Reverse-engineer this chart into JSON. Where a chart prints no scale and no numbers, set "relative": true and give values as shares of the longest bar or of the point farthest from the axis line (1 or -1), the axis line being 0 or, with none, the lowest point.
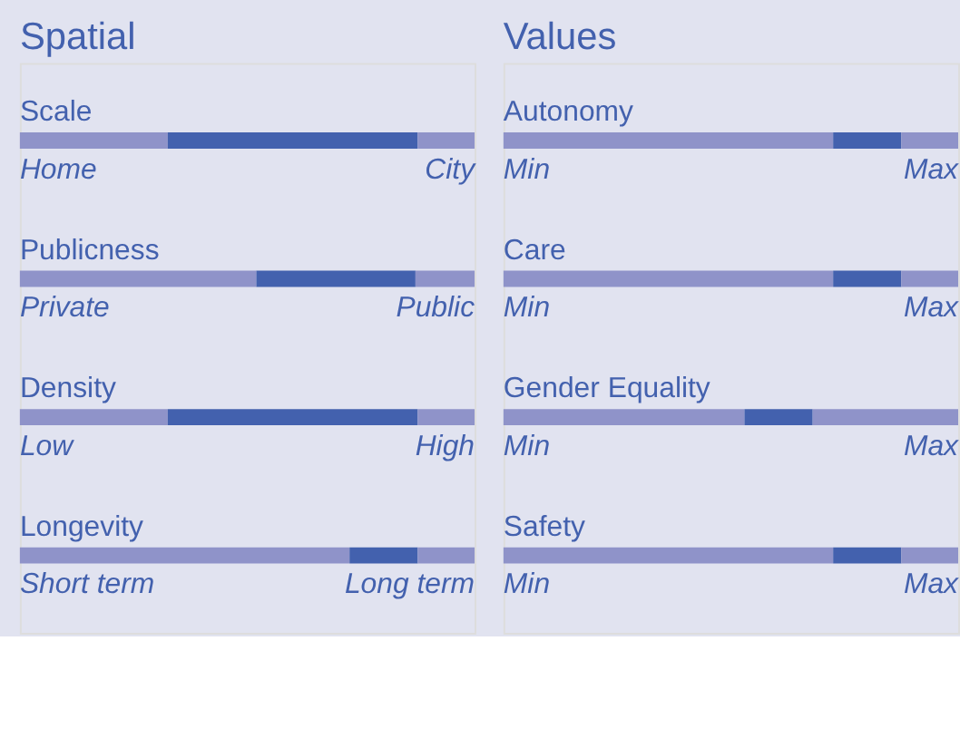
{
  "chart_data": [
    {
      "type": "bar",
      "title": "Spatial",
      "orientation": "horizontal",
      "stacked": true,
      "relative": true,
      "legend": false,
      "tick_labels": "y",
      "categories": [
        "Scale",
        "Publicness",
        "Density",
        "Longevity"
      ],
      "series": [
        {
          "color": "#8f93c9",
          "values": [
            0.325,
            0.52,
            0.325,
            0.725
          ]
        },
        {
          "color": "#4361ae",
          "values": [
            0.55,
            0.35,
            0.55,
            0.15
          ]
        },
        {
          "color": "#8f93c9",
          "values": [
            0.125,
            0.13,
            0.125,
            0.125
          ]
        }
      ],
      "annotations": [
        "Home",
        "City",
        "Private",
        "Public",
        "Low",
        "High",
        "Short term",
        "Long term"
      ]
    },
    {
      "type": "bar",
      "title": "Values",
      "orientation": "horizontal",
      "stacked": true,
      "relative": true,
      "legend": false,
      "tick_labels": "y",
      "categories": [
        "Autonomy",
        "Care",
        "Gender Equality",
        "Safety"
      ],
      "series": [
        {
          "color": "#8f93c9",
          "values": [
            0.725,
            0.725,
            0.53,
            0.725
          ]
        },
        {
          "color": "#4361ae",
          "values": [
            0.15,
            0.15,
            0.15,
            0.15
          ]
        },
        {
          "color": "#8f93c9",
          "values": [
            0.125,
            0.125,
            0.32,
            0.125
          ]
        }
      ],
      "annotations": [
        "Min",
        "Max",
        "Min",
        "Max",
        "Min",
        "Max",
        "Min",
        "Max"
      ]
    }
  ]
}
